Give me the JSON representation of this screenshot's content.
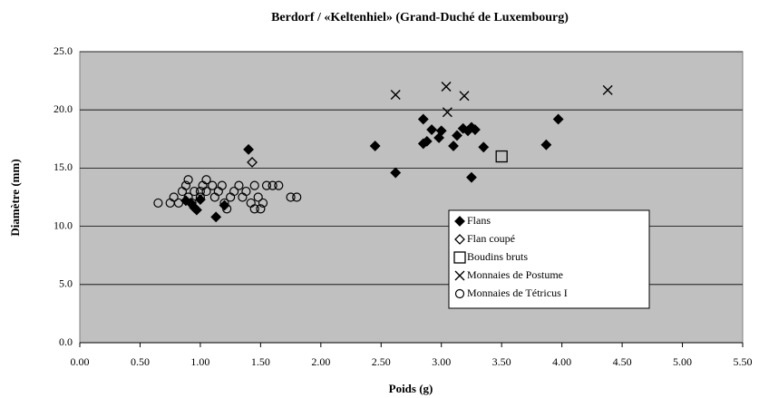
{
  "chart_data": {
    "type": "scatter",
    "title": "Berdorf / «Keltenhiel» (Grand-Duché de Luxembourg)",
    "x_label": "Poids (g)",
    "y_label": "Diamètre (mm)",
    "xlim": [
      0,
      5.5
    ],
    "ylim": [
      0,
      25
    ],
    "xticks": [
      {
        "value": 0,
        "label": "0.00"
      },
      {
        "value": 0.5,
        "label": "0.50"
      },
      {
        "value": 1,
        "label": "1.00"
      },
      {
        "value": 1.5,
        "label": "1.50"
      },
      {
        "value": 2,
        "label": "2.00"
      },
      {
        "value": 2.5,
        "label": "2.50"
      },
      {
        "value": 3,
        "label": "3.00"
      },
      {
        "value": 3.5,
        "label": "3.50"
      },
      {
        "value": 4,
        "label": "4.00"
      },
      {
        "value": 4.5,
        "label": "4.50"
      },
      {
        "value": 5,
        "label": "5.00"
      },
      {
        "value": 5.5,
        "label": "5.50"
      }
    ],
    "yticks": [
      {
        "value": 0,
        "label": "0.0"
      },
      {
        "value": 5,
        "label": "5.0"
      },
      {
        "value": 10,
        "label": "10.0"
      },
      {
        "value": 15,
        "label": "15.0"
      },
      {
        "value": 20,
        "label": "20.0"
      },
      {
        "value": 25,
        "label": "25.0"
      }
    ],
    "grid": true,
    "legend": "lower-right",
    "series": [
      {
        "name": "Flans",
        "marker": "diamond-filled",
        "color": "#000000",
        "x": [
          0.88,
          0.92,
          0.95,
          0.97,
          1.0,
          1.13,
          1.2,
          1.4,
          2.45,
          2.62,
          2.85,
          2.85,
          2.88,
          2.92,
          2.98,
          3.0,
          3.1,
          3.13,
          3.18,
          3.22,
          3.25,
          3.28,
          3.25,
          3.35,
          3.87,
          3.97
        ],
        "values": [
          12.2,
          12.0,
          11.6,
          11.4,
          12.3,
          10.8,
          11.8,
          16.6,
          16.9,
          14.6,
          19.2,
          17.1,
          17.3,
          18.3,
          17.6,
          18.2,
          16.9,
          17.8,
          18.4,
          18.2,
          18.5,
          18.3,
          14.2,
          16.8,
          17.0,
          19.2
        ]
      },
      {
        "name": "Flan coupé",
        "marker": "diamond-open",
        "color": "#000000",
        "x": [
          1.43
        ],
        "values": [
          15.5
        ]
      },
      {
        "name": "Boudins bruts",
        "marker": "square-open",
        "color": "#000000",
        "x": [
          3.5
        ],
        "values": [
          16.0
        ]
      },
      {
        "name": "Monnaies de Postume",
        "marker": "x",
        "color": "#000000",
        "x": [
          2.62,
          3.04,
          3.05,
          3.19,
          4.38
        ],
        "values": [
          21.3,
          22.0,
          19.8,
          21.2,
          21.7
        ]
      },
      {
        "name": "Monnaies de Tétricus I",
        "marker": "circle-open",
        "color": "#000000",
        "x": [
          0.65,
          0.75,
          0.78,
          0.82,
          0.85,
          0.88,
          0.9,
          0.9,
          0.95,
          1.0,
          1.02,
          1.05,
          1.05,
          1.1,
          1.12,
          1.15,
          1.18,
          1.2,
          1.22,
          1.25,
          1.28,
          1.32,
          1.35,
          1.38,
          1.42,
          1.45,
          1.45,
          1.48,
          1.5,
          1.52,
          1.55,
          1.6,
          1.65,
          1.75,
          1.8,
          1.0,
          0.93
        ],
        "values": [
          12.0,
          12.0,
          12.5,
          12.0,
          13.0,
          13.5,
          14.0,
          12.5,
          13.0,
          12.5,
          13.5,
          14.0,
          13.0,
          13.5,
          12.5,
          13.0,
          13.5,
          12.0,
          11.5,
          12.5,
          13.0,
          13.5,
          12.5,
          13.0,
          12.0,
          11.5,
          13.5,
          12.5,
          11.5,
          12.0,
          13.5,
          13.5,
          13.5,
          12.5,
          12.5,
          13.0,
          12.0
        ]
      }
    ]
  }
}
